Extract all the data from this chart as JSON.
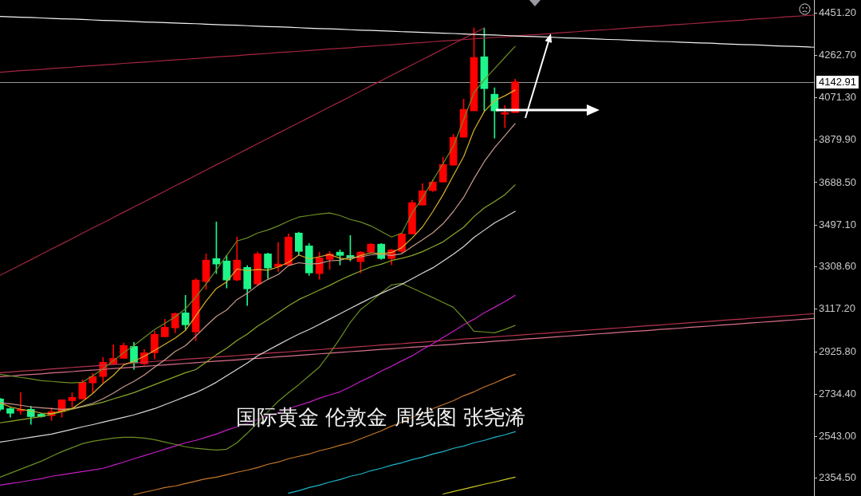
{
  "chart_data": {
    "type": "candlestick",
    "title": "国际黄金 伦敦金 周线图 张尧浠",
    "categories": [
      null,
      null,
      null,
      null,
      null,
      null,
      null,
      null,
      null,
      null,
      null,
      null,
      null,
      null,
      null,
      null,
      null,
      null,
      null,
      null,
      null,
      null,
      null,
      null,
      null,
      null,
      null,
      null,
      null,
      null,
      null,
      null,
      null,
      null,
      null,
      null,
      null,
      null,
      null,
      null,
      null,
      null,
      null,
      null,
      null,
      null,
      null,
      null,
      null,
      null,
      null,
      null,
      null,
      null,
      null,
      null,
      null,
      null,
      null,
      null,
      null,
      null,
      null,
      null,
      null,
      null,
      null,
      null,
      null,
      null,
      null,
      null,
      null,
      null,
      null,
      null,
      null,
      null,
      null,
      null
    ],
    "ohlc": [
      [
        2713,
        2716,
        2659,
        2666
      ],
      [
        2669,
        2673,
        2630,
        2648
      ],
      [
        2659,
        2741,
        2644,
        2666
      ],
      [
        2666,
        2680,
        2598,
        2633
      ],
      [
        2644,
        2648,
        2630,
        2633
      ],
      [
        2637,
        2673,
        2616,
        2655
      ],
      [
        2655,
        2709,
        2630,
        2709
      ],
      [
        2705,
        2741,
        2677,
        2720
      ],
      [
        2713,
        2799,
        2713,
        2788
      ],
      [
        2785,
        2828,
        2741,
        2814
      ],
      [
        2814,
        2900,
        2788,
        2878
      ],
      [
        2871,
        2957,
        2871,
        2896
      ],
      [
        2896,
        2965,
        2896,
        2954
      ],
      [
        2950,
        2968,
        2846,
        2875
      ],
      [
        2871,
        2936,
        2867,
        2921
      ],
      [
        2921,
        3018,
        2893,
        3004
      ],
      [
        2993,
        3072,
        2993,
        3036
      ],
      [
        3033,
        3101,
        3011,
        3098
      ],
      [
        3101,
        3180,
        3026,
        3047
      ],
      [
        3015,
        3256,
        2975,
        3249
      ],
      [
        3242,
        3367,
        3206,
        3339
      ],
      [
        3346,
        3511,
        3278,
        3321
      ],
      [
        3335,
        3360,
        3213,
        3249
      ],
      [
        3249,
        3443,
        3245,
        3339
      ],
      [
        3306,
        3314,
        3134,
        3209
      ],
      [
        3231,
        3375,
        3224,
        3367
      ],
      [
        3367,
        3371,
        3256,
        3303
      ],
      [
        3310,
        3418,
        3288,
        3321
      ],
      [
        3317,
        3457,
        3317,
        3443
      ],
      [
        3461,
        3465,
        3360,
        3378
      ],
      [
        3403,
        3414,
        3270,
        3281
      ],
      [
        3278,
        3375,
        3252,
        3349
      ],
      [
        3342,
        3378,
        3296,
        3367
      ],
      [
        3375,
        3385,
        3317,
        3360
      ],
      [
        3360,
        3450,
        3335,
        3349
      ],
      [
        3332,
        3378,
        3281,
        3375
      ],
      [
        3375,
        3414,
        3371,
        3411
      ],
      [
        3411,
        3414,
        3342,
        3346
      ],
      [
        3346,
        3389,
        3317,
        3385
      ],
      [
        3378,
        3461,
        3371,
        3457
      ],
      [
        3457,
        3609,
        3457,
        3598
      ],
      [
        3587,
        3684,
        3587,
        3652
      ],
      [
        3652,
        3702,
        3648,
        3691
      ],
      [
        3691,
        3803,
        3691,
        3770
      ],
      [
        3767,
        3907,
        3767,
        3893
      ],
      [
        3893,
        4065,
        3893,
        4019
      ],
      [
        4012,
        4386,
        4012,
        4253
      ],
      [
        4256,
        4386,
        4012,
        4112
      ],
      [
        4087,
        4116,
        3889,
        4012
      ],
      [
        3997,
        4037,
        3936,
        4004
      ],
      [
        4004,
        4155,
        4004,
        4143
      ],
      null,
      null,
      null,
      null,
      null,
      null,
      null,
      null,
      null,
      null,
      null,
      null,
      null,
      null,
      null,
      null,
      null,
      null,
      null,
      null,
      null,
      null,
      null,
      null,
      null,
      null,
      null,
      null,
      null
    ],
    "colors": [
      "#1ef58a",
      "#1ef58a",
      "#ff0000",
      "#1ef58a",
      "#1ef58a",
      "#ff0000",
      "#ff0000",
      "#ff0000",
      "#ff0000",
      "#ff0000",
      "#ff0000",
      "#ff0000",
      "#ff0000",
      "#1ef58a",
      "#ff0000",
      "#ff0000",
      "#ff0000",
      "#ff0000",
      "#1ef58a",
      "#ff0000",
      "#ff0000",
      "#1ef58a",
      "#1ef58a",
      "#ff0000",
      "#1ef58a",
      "#ff0000",
      "#1ef58a",
      "#ff0000",
      "#ff0000",
      "#1ef58a",
      "#1ef58a",
      "#ff0000",
      "#ff0000",
      "#1ef58a",
      "#1ef58a",
      "#ff0000",
      "#ff0000",
      "#1ef58a",
      "#ff0000",
      "#ff0000",
      "#ff0000",
      "#ff0000",
      "#ff0000",
      "#ff0000",
      "#ff0000",
      "#ff0000",
      "#ff0000",
      "#1ef58a",
      "#1ef58a",
      "#ff0000",
      "#ff0000",
      null,
      null,
      null,
      null,
      null,
      null,
      null,
      null,
      null,
      null,
      null,
      null,
      null,
      null,
      null,
      null,
      null,
      null,
      null,
      null,
      null,
      null,
      null,
      null,
      null,
      null,
      null,
      null,
      null
    ],
    "series": [
      {
        "type": "line",
        "color": "#d9b02a",
        "values": [
          2695,
          2677,
          2666,
          2659,
          2649,
          2647,
          2659,
          2670,
          2701,
          2737,
          2782,
          2819,
          2866,
          2883,
          2905,
          2931,
          2959,
          2987,
          3022,
          3087,
          3154,
          3211,
          3241,
          3299,
          3291,
          3297,
          3293,
          3308,
          3329,
          3362,
          3345,
          3354,
          3364,
          3347,
          3342,
          3360,
          3372,
          3368,
          3373,
          3395,
          3439,
          3488,
          3557,
          3634,
          3721,
          3805,
          3925,
          4009,
          4058,
          4080,
          4106,
          null,
          null,
          null,
          null,
          null,
          null,
          null,
          null,
          null,
          null,
          null,
          null,
          null,
          null,
          null,
          null,
          null,
          null,
          null,
          null,
          null,
          null,
          null,
          null,
          null,
          null,
          null,
          null,
          null
        ]
      },
      {
        "type": "line",
        "color": "#c89a8c",
        "values": [
          2695,
          2691,
          2684,
          2677,
          2673,
          2669,
          2666,
          2669,
          2680,
          2693,
          2714,
          2739,
          2768,
          2792,
          2821,
          2856,
          2889,
          2927,
          2953,
          2996,
          3042,
          3085,
          3114,
          3161,
          3189,
          3225,
          3252,
          3274,
          3314,
          3327,
          3321,
          3324,
          3336,
          3338,
          3352,
          3353,
          3363,
          3366,
          3360,
          3368,
          3400,
          3430,
          3462,
          3503,
          3558,
          3622,
          3706,
          3783,
          3846,
          3900,
          3955,
          null,
          null,
          null,
          null,
          null,
          null,
          null,
          null,
          null,
          null,
          null,
          null,
          null,
          null,
          null,
          null,
          null,
          null,
          null,
          null,
          null,
          null,
          null,
          null,
          null,
          null,
          null,
          null,
          null
        ]
      },
      {
        "type": "line",
        "color": "#8aa82a",
        "values": [
          2605,
          2612,
          2619,
          2626,
          2633,
          2644,
          2655,
          2666,
          2677,
          2687,
          2698,
          2713,
          2727,
          2741,
          2759,
          2777,
          2795,
          2813,
          2831,
          2845,
          2878,
          2912,
          2941,
          2976,
          3005,
          3041,
          3070,
          3101,
          3133,
          3161,
          3182,
          3204,
          3225,
          3249,
          3270,
          3289,
          3308,
          3320,
          3337,
          3347,
          3360,
          3377,
          3399,
          3421,
          3455,
          3487,
          3535,
          3574,
          3603,
          3634,
          3678,
          null,
          null,
          null,
          null,
          null,
          null,
          null,
          null,
          null,
          null,
          null,
          null,
          null,
          null,
          null,
          null,
          null,
          null,
          null,
          null,
          null,
          null,
          null,
          null,
          null,
          null,
          null,
          null,
          null
        ]
      },
      {
        "type": "line",
        "color": "#d8d8d8",
        "values": [
          2518,
          2525,
          2533,
          2540,
          2547,
          2554,
          2565,
          2576,
          2587,
          2597,
          2608,
          2619,
          2630,
          2641,
          2655,
          2669,
          2687,
          2705,
          2723,
          2741,
          2763,
          2788,
          2817,
          2846,
          2875,
          2907,
          2932,
          2957,
          2982,
          3005,
          3026,
          3049,
          3073,
          3097,
          3121,
          3145,
          3168,
          3189,
          3209,
          3230,
          3255,
          3280,
          3304,
          3334,
          3366,
          3400,
          3441,
          3474,
          3507,
          3532,
          3559,
          null,
          null,
          null,
          null,
          null,
          null,
          null,
          null,
          null,
          null,
          null,
          null,
          null,
          null,
          null,
          null,
          null,
          null,
          null,
          null,
          null,
          null,
          null,
          null,
          null,
          null,
          null,
          null,
          null
        ]
      },
      {
        "type": "line",
        "color": "#6b8e23",
        "values": [
          2824,
          2817,
          2810,
          2803,
          2795,
          2792,
          2788,
          2785,
          2788,
          2817,
          2849,
          2885,
          2921,
          2954,
          2990,
          3026,
          3054,
          3083,
          3119,
          3173,
          3231,
          3295,
          3360,
          3425,
          3439,
          3461,
          3475,
          3493,
          3515,
          3533,
          3540,
          3547,
          3551,
          3540,
          3522,
          3511,
          3493,
          3468,
          3443,
          3461,
          3551,
          3619,
          3698,
          3774,
          3853,
          3972,
          4094,
          4152,
          4202,
          4253,
          4303,
          null,
          null,
          null,
          null,
          null,
          null,
          null,
          null,
          null,
          null,
          null,
          null,
          null,
          null,
          null,
          null,
          null,
          null,
          null,
          null,
          null,
          null,
          null,
          null,
          null,
          null,
          null,
          null,
          null
        ]
      },
      {
        "type": "line",
        "color": "#6b8e23",
        "values": [
          2360,
          2378,
          2396,
          2414,
          2432,
          2454,
          2475,
          2493,
          2511,
          2522,
          2529,
          2536,
          2540,
          2540,
          2536,
          2529,
          2518,
          2508,
          2497,
          2490,
          2486,
          2482,
          2486,
          2515,
          2558,
          2605,
          2655,
          2702,
          2741,
          2777,
          2817,
          2857,
          2918,
          2986,
          3058,
          3116,
          3152,
          3191,
          3227,
          3234,
          3213,
          3191,
          3170,
          3148,
          3126,
          3076,
          3018,
          3015,
          3011,
          3026,
          3044,
          null,
          null,
          null,
          null,
          null,
          null,
          null,
          null,
          null,
          null,
          null,
          null,
          null,
          null,
          null,
          null,
          null,
          null,
          null,
          null,
          null,
          null,
          null,
          null,
          null,
          null,
          null,
          null,
          null
        ]
      },
      {
        "type": "line",
        "color": "#c41ec4",
        "values": [
          2324,
          2331,
          2338,
          2346,
          2353,
          2364,
          2371,
          2378,
          2385,
          2392,
          2400,
          2414,
          2428,
          2443,
          2457,
          2471,
          2486,
          2500,
          2515,
          2526,
          2540,
          2554,
          2572,
          2587,
          2605,
          2619,
          2637,
          2651,
          2669,
          2684,
          2698,
          2716,
          2731,
          2745,
          2767,
          2792,
          2813,
          2839,
          2860,
          2885,
          2907,
          2936,
          2961,
          2990,
          3018,
          3047,
          3072,
          3101,
          3126,
          3152,
          3180,
          null,
          null,
          null,
          null,
          null,
          null,
          null,
          null,
          null,
          null,
          null,
          null,
          null,
          null,
          null,
          null,
          null,
          null,
          null,
          null,
          null,
          null,
          null,
          null,
          null,
          null,
          null,
          null,
          null
        ]
      },
      {
        "type": "line",
        "color": "#c8782a",
        "values": [
          null,
          null,
          null,
          null,
          null,
          null,
          null,
          null,
          null,
          null,
          null,
          null,
          null,
          2281,
          2292,
          2302,
          2313,
          2320,
          2331,
          2342,
          2353,
          2360,
          2371,
          2382,
          2392,
          2403,
          2418,
          2428,
          2443,
          2454,
          2464,
          2479,
          2490,
          2504,
          2515,
          2533,
          2551,
          2569,
          2590,
          2608,
          2630,
          2648,
          2669,
          2687,
          2705,
          2727,
          2745,
          2767,
          2785,
          2806,
          2824,
          null,
          null,
          null,
          null,
          null,
          null,
          null,
          null,
          null,
          null,
          null,
          null,
          null,
          null,
          null,
          null,
          null,
          null,
          null,
          null,
          null,
          null,
          null,
          null,
          null,
          null,
          null,
          null,
          null
        ]
      },
      {
        "type": "line",
        "color": "#1eb4c8",
        "values": [
          null,
          null,
          null,
          null,
          null,
          null,
          null,
          null,
          null,
          null,
          null,
          null,
          null,
          null,
          null,
          null,
          null,
          null,
          null,
          null,
          null,
          null,
          null,
          null,
          null,
          null,
          null,
          null,
          2288,
          2299,
          2313,
          2324,
          2338,
          2349,
          2364,
          2374,
          2389,
          2400,
          2414,
          2425,
          2439,
          2450,
          2464,
          2475,
          2490,
          2500,
          2515,
          2526,
          2540,
          2551,
          2565,
          null,
          null,
          null,
          null,
          null,
          null,
          null,
          null,
          null,
          null,
          null,
          null,
          null,
          null,
          null,
          null,
          null,
          null,
          null,
          null,
          null,
          null,
          null,
          null,
          null,
          null,
          null,
          null,
          null
        ]
      },
      {
        "type": "line",
        "color": "#c8c81e",
        "values": [
          null,
          null,
          null,
          null,
          null,
          null,
          null,
          null,
          null,
          null,
          null,
          null,
          null,
          null,
          null,
          null,
          null,
          null,
          null,
          null,
          null,
          null,
          null,
          null,
          null,
          null,
          null,
          null,
          null,
          null,
          null,
          null,
          null,
          null,
          null,
          null,
          null,
          null,
          null,
          null,
          null,
          null,
          null,
          2284,
          2295,
          2306,
          2317,
          2328,
          2338,
          2349,
          2360,
          null,
          null,
          null,
          null,
          null,
          null,
          null,
          null,
          null,
          null,
          null,
          null,
          null,
          null,
          null,
          null,
          null,
          null,
          null,
          null,
          null,
          null,
          null,
          null,
          null,
          null,
          null,
          null,
          null
        ]
      },
      {
        "type": "line",
        "color": "#f4f4f4",
        "values": [
          4438,
          4436,
          4434,
          4433,
          4431,
          4429,
          4427,
          4426,
          4424,
          4422,
          4420,
          4419,
          4417,
          4415,
          4413,
          4412,
          4410,
          4408,
          4406,
          4405,
          4403,
          4401,
          4399,
          4398,
          4396,
          4394,
          4392,
          4391,
          4389,
          4387,
          4385,
          4383,
          4382,
          4380,
          4378,
          4376,
          4375,
          4373,
          4371,
          4369,
          4368,
          4366,
          4364,
          4362,
          4361,
          4359,
          4357,
          4355,
          4354,
          4352,
          4350,
          4348,
          4347,
          4345,
          4343,
          4341,
          4340,
          4338,
          4336,
          4334,
          4333,
          4331,
          4329,
          4327,
          4325,
          4324,
          4322,
          4320,
          4318,
          4317,
          4315,
          4313,
          4311,
          4310,
          4308,
          4306,
          4304,
          4303,
          4301,
          4299
        ]
      },
      {
        "type": "line",
        "color": "#a3263f",
        "values": [
          4186,
          4190,
          4193,
          4196,
          4199,
          4203,
          4206,
          4209,
          4213,
          4216,
          4219,
          4222,
          4226,
          4229,
          4232,
          4235,
          4239,
          4242,
          4245,
          4248,
          4252,
          4255,
          4258,
          4261,
          4265,
          4268,
          4271,
          4275,
          4278,
          4281,
          4284,
          4288,
          4291,
          4294,
          4297,
          4301,
          4304,
          4307,
          4310,
          4314,
          4317,
          4320,
          4324,
          4327,
          4330,
          4333,
          4337,
          4340,
          4343,
          4346,
          4350,
          4353,
          4356,
          4359,
          4363,
          4366,
          4369,
          4373,
          4376,
          4379,
          4382,
          4386,
          4389,
          4392,
          4395,
          4399,
          4402,
          4405,
          4408,
          4412,
          4415,
          4418,
          4421,
          4425,
          4428,
          4431,
          4435,
          4438,
          4441,
          4444
        ]
      },
      {
        "type": "line",
        "color": "#a3263f",
        "values": [
          3270,
          3294,
          3317,
          3341,
          3365,
          3389,
          3412,
          3436,
          3460,
          3484,
          3507,
          3531,
          3555,
          3579,
          3602,
          3626,
          3650,
          3674,
          3697,
          3721,
          3745,
          3769,
          3792,
          3816,
          3840,
          3864,
          3887,
          3911,
          3935,
          3958,
          3982,
          4006,
          4030,
          4053,
          4077,
          4101,
          4125,
          4148,
          4172,
          4196,
          4220,
          4243,
          4267,
          4291,
          4315,
          4338,
          4362,
          4386,
          null,
          null,
          null,
          null,
          null,
          null,
          null,
          null,
          null,
          null,
          null,
          null,
          null,
          null,
          null,
          null,
          null,
          null,
          null,
          null,
          null,
          null,
          null,
          null,
          null,
          null,
          null,
          null,
          null,
          null,
          null,
          null
        ]
      },
      {
        "type": "line",
        "color": "#b8344e",
        "values": [
          2831,
          2834,
          2838,
          2841,
          2844,
          2848,
          2851,
          2855,
          2858,
          2861,
          2865,
          2868,
          2871,
          2875,
          2878,
          2882,
          2885,
          2888,
          2892,
          2895,
          2898,
          2902,
          2905,
          2908,
          2912,
          2915,
          2919,
          2922,
          2925,
          2929,
          2932,
          2935,
          2939,
          2942,
          2945,
          2949,
          2952,
          2956,
          2959,
          2962,
          2966,
          2969,
          2972,
          2976,
          2979,
          2983,
          2986,
          2989,
          2993,
          2996,
          2999,
          3003,
          3006,
          3009,
          3013,
          3016,
          3020,
          3023,
          3026,
          3030,
          3033,
          3036,
          3040,
          3043,
          3046,
          3050,
          3053,
          3057,
          3060,
          3063,
          3067,
          3070,
          3073,
          3077,
          3080,
          3084,
          3087,
          3090,
          3094,
          3097
        ]
      },
      {
        "type": "line",
        "color": "#d9708a",
        "values": [
          2813,
          2816,
          2820,
          2823,
          2826,
          2830,
          2833,
          2836,
          2840,
          2843,
          2846,
          2850,
          2853,
          2856,
          2860,
          2863,
          2866,
          2870,
          2873,
          2876,
          2880,
          2883,
          2886,
          2889,
          2893,
          2896,
          2899,
          2903,
          2906,
          2909,
          2913,
          2916,
          2919,
          2923,
          2926,
          2929,
          2933,
          2936,
          2939,
          2943,
          2946,
          2949,
          2953,
          2956,
          2959,
          2963,
          2966,
          2969,
          2973,
          2976,
          2979,
          2983,
          2986,
          2989,
          2993,
          2996,
          2999,
          3003,
          3006,
          3009,
          3013,
          3016,
          3019,
          3022,
          3026,
          3029,
          3032,
          3036,
          3039,
          3042,
          3046,
          3049,
          3052,
          3056,
          3059,
          3062,
          3066,
          3069,
          3072,
          3076
        ]
      }
    ],
    "ylim": [
      2275,
      4512
    ],
    "yticks": [
      {
        "value": 4451.2,
        "label": "4451.20"
      },
      {
        "value": 4262.7,
        "label": "4262.70"
      },
      {
        "value": 4071.3,
        "label": "4071.30"
      },
      {
        "value": 3879.9,
        "label": "3879.90"
      },
      {
        "value": 3688.5,
        "label": "3688.50"
      },
      {
        "value": 3497.1,
        "label": "3497.10"
      },
      {
        "value": 3308.6,
        "label": "3308.60"
      },
      {
        "value": 3117.2,
        "label": "3117.20"
      },
      {
        "value": 2925.8,
        "label": "2925.80"
      },
      {
        "value": 2734.4,
        "label": "2734.40"
      },
      {
        "value": 2543,
        "label": "2543.00"
      },
      {
        "value": 2354.5,
        "label": "2354.50"
      }
    ],
    "tick_labels": "y",
    "ref_lines": [
      {
        "axis": "y",
        "value": 4142.91,
        "label": "4142.91",
        "color": "#9a9a9a"
      }
    ]
  }
}
